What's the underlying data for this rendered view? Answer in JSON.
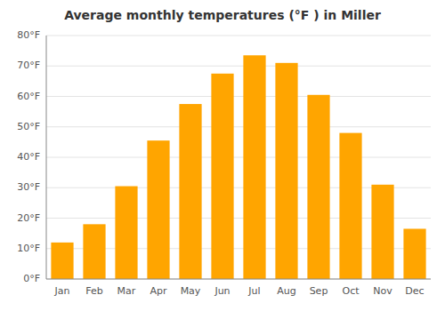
{
  "chart_data": {
    "type": "bar",
    "title": "Average monthly temperatures (°F ) in Miller",
    "categories": [
      "Jan",
      "Feb",
      "Mar",
      "Apr",
      "May",
      "Jun",
      "Jul",
      "Aug",
      "Sep",
      "Oct",
      "Nov",
      "Dec"
    ],
    "values": [
      12,
      18,
      30.5,
      45.5,
      57.5,
      67.5,
      73.5,
      71,
      60.5,
      48,
      31,
      16.5
    ],
    "color": "#FFA500",
    "ylim": [
      0,
      80
    ],
    "yticks": [
      {
        "value": 0,
        "label": "0°F"
      },
      {
        "value": 10,
        "label": "10°F"
      },
      {
        "value": 20,
        "label": "20°F"
      },
      {
        "value": 30,
        "label": "30°F"
      },
      {
        "value": 40,
        "label": "40°F"
      },
      {
        "value": 50,
        "label": "50°F"
      },
      {
        "value": 60,
        "label": "60°F"
      },
      {
        "value": 70,
        "label": "70°F"
      },
      {
        "value": 80,
        "label": "80°F"
      }
    ],
    "grid": true
  }
}
